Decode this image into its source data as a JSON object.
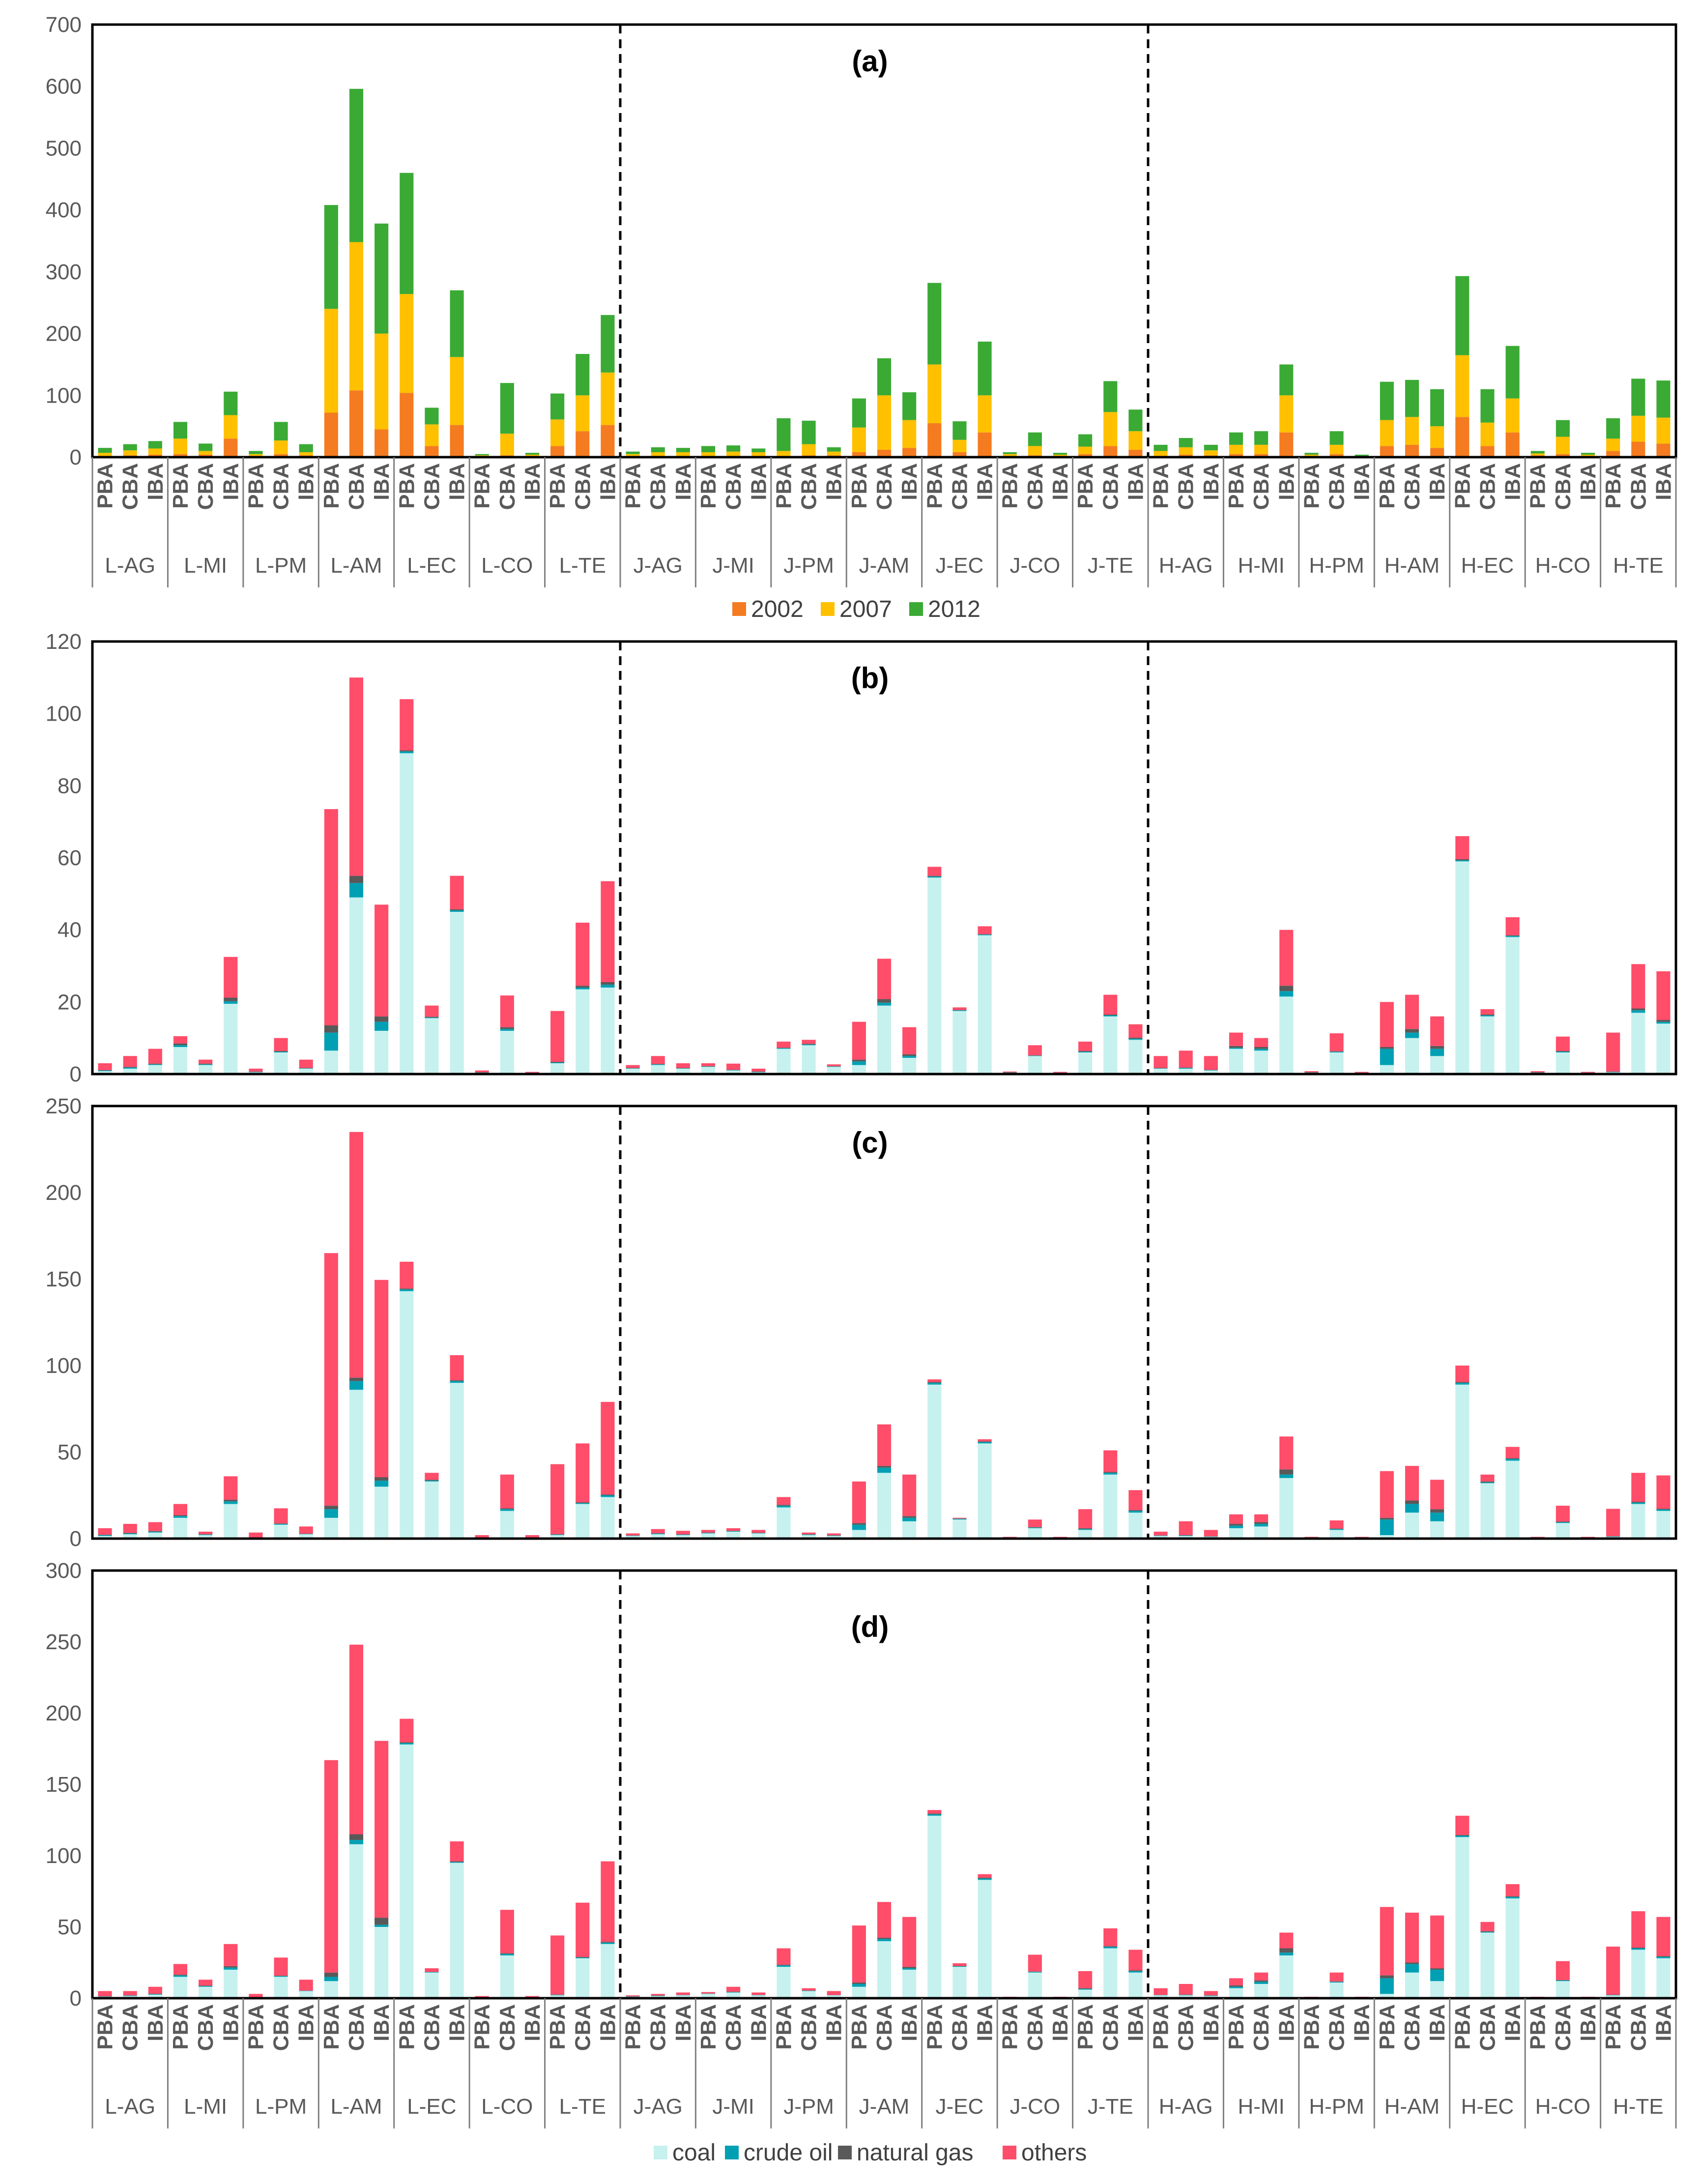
{
  "chart_data": [
    {
      "type": "bar",
      "stacked": true,
      "panel_label": "(a)",
      "ylim": [
        0,
        700
      ],
      "yticks": [
        "0",
        "100",
        "200",
        "300",
        "400",
        "500",
        "600",
        "700"
      ],
      "series": [
        {
          "name": "2002",
          "color": "#f47b20",
          "values": [
            2,
            3,
            4,
            5,
            4,
            30,
            2,
            5,
            3,
            72,
            108,
            45,
            104,
            18,
            52,
            2,
            3,
            2,
            18,
            42,
            52,
            1,
            2,
            2,
            2,
            2,
            2,
            2,
            3,
            3,
            8,
            12,
            15,
            55,
            8,
            40,
            2,
            3,
            2,
            5,
            18,
            12,
            2,
            4,
            3,
            5,
            5,
            40,
            2,
            5,
            1,
            18,
            20,
            15,
            65,
            18,
            40,
            3,
            5,
            2,
            10,
            25,
            22
          ]
        },
        {
          "name": "2007",
          "color": "#ffc000",
          "values": [
            5,
            8,
            10,
            25,
            6,
            38,
            3,
            22,
            5,
            168,
            240,
            155,
            160,
            35,
            110,
            1,
            35,
            2,
            43,
            58,
            85,
            4,
            6,
            6,
            6,
            7,
            6,
            8,
            18,
            6,
            40,
            88,
            45,
            95,
            20,
            60,
            3,
            15,
            2,
            12,
            55,
            30,
            8,
            12,
            8,
            15,
            15,
            60,
            2,
            15,
            1,
            42,
            45,
            35,
            100,
            38,
            55,
            3,
            28,
            2,
            20,
            42,
            42
          ]
        },
        {
          "name": "2012",
          "color": "#3aaa35",
          "values": [
            8,
            10,
            12,
            27,
            12,
            38,
            5,
            30,
            13,
            168,
            248,
            178,
            196,
            27,
            108,
            2,
            82,
            3,
            42,
            67,
            93,
            4,
            8,
            7,
            10,
            10,
            6,
            53,
            38,
            7,
            47,
            60,
            45,
            132,
            30,
            87,
            3,
            22,
            3,
            20,
            50,
            35,
            10,
            15,
            9,
            20,
            22,
            50,
            3,
            22,
            2,
            62,
            60,
            60,
            128,
            54,
            85,
            4,
            27,
            3,
            33,
            60,
            60
          ]
        }
      ]
    },
    {
      "type": "bar",
      "stacked": true,
      "panel_label": "(b)",
      "ylim": [
        0,
        120
      ],
      "yticks": [
        "0",
        "20",
        "40",
        "60",
        "80",
        "100",
        "120"
      ],
      "series": [
        {
          "name": "coal",
          "color": "#c6f1ef",
          "values": [
            0.8,
            1.5,
            2.5,
            7.5,
            2.5,
            19.5,
            0.5,
            6,
            1.5,
            6.5,
            49,
            12,
            89,
            15.5,
            45,
            0.3,
            12,
            0.2,
            3,
            23.5,
            24,
            1.5,
            2.5,
            1.5,
            2,
            1,
            0.5,
            7,
            8,
            2,
            2.5,
            19,
            4.5,
            54.5,
            17.5,
            38.5,
            0.3,
            5,
            0.2,
            6,
            16,
            9.5,
            1.5,
            1.5,
            1,
            7,
            6.5,
            21.5,
            0.3,
            6,
            0.2,
            2.5,
            10,
            5,
            59,
            16,
            38,
            0.3,
            6,
            0.2,
            0.5,
            17,
            14
          ]
        },
        {
          "name": "crude oil",
          "color": "#00a0b4",
          "values": [
            0.2,
            0.3,
            0.2,
            0.5,
            0.2,
            0.7,
            0.1,
            0.2,
            0.1,
            5,
            4,
            2.5,
            0.5,
            0.2,
            0.4,
            0.1,
            0.5,
            0.1,
            0.2,
            0.5,
            0.8,
            0.1,
            0.2,
            0.1,
            0.1,
            0.1,
            0.1,
            0.2,
            0.2,
            0.1,
            1,
            0.8,
            0.5,
            0.3,
            0.2,
            0.2,
            0.1,
            0.1,
            0.1,
            0.2,
            0.3,
            0.3,
            0.1,
            0.2,
            0.1,
            0.3,
            0.5,
            1.5,
            0.1,
            0.2,
            0.1,
            4.5,
            1.5,
            2,
            0.3,
            0.3,
            0.3,
            0.1,
            0.2,
            0.1,
            0.1,
            0.7,
            0.5
          ]
        },
        {
          "name": "natural gas",
          "color": "#595959",
          "values": [
            0.1,
            0.2,
            0.2,
            0.5,
            0.2,
            1,
            0.1,
            0.2,
            0.1,
            2,
            2,
            1.5,
            0.3,
            0.2,
            0.3,
            0.1,
            0.5,
            0.1,
            0.2,
            0.5,
            0.7,
            0.1,
            0.1,
            0.1,
            0.1,
            0.1,
            0.1,
            0.1,
            0.2,
            0.1,
            0.5,
            1,
            0.5,
            0.2,
            0.1,
            0.1,
            0.1,
            0.1,
            0.1,
            0.2,
            0.2,
            0.3,
            0.1,
            0.1,
            0.1,
            0.5,
            0.5,
            1.5,
            0.1,
            0.1,
            0.1,
            0.5,
            1,
            0.8,
            0.3,
            0.2,
            0.2,
            0.1,
            0.2,
            0.1,
            0.1,
            0.5,
            0.5
          ]
        },
        {
          "name": "others",
          "color": "#ff4d6a",
          "values": [
            1.9,
            3,
            4.1,
            2,
            1.1,
            11.3,
            0.8,
            3.6,
            2.3,
            60,
            55,
            31,
            14.2,
            3.1,
            9.3,
            0.5,
            8.8,
            0.2,
            14.1,
            17.5,
            28,
            0.8,
            2.2,
            1.3,
            0.8,
            1.7,
            0.8,
            1.7,
            1.1,
            0.5,
            10.5,
            11.2,
            7.5,
            2.5,
            0.7,
            2.2,
            0.2,
            2.8,
            0.2,
            2.6,
            5.5,
            3.7,
            3.3,
            4.7,
            3.8,
            3.7,
            2.5,
            15.5,
            0.3,
            5,
            0.2,
            12.5,
            9.5,
            8.2,
            6.4,
            1.5,
            5,
            0.3,
            4,
            0.2,
            10.8,
            12.3,
            13.5
          ]
        }
      ]
    },
    {
      "type": "bar",
      "stacked": true,
      "panel_label": "(c)",
      "ylim": [
        0,
        250
      ],
      "yticks": [
        "0",
        "50",
        "100",
        "150",
        "200",
        "250"
      ],
      "series": [
        {
          "name": "coal",
          "color": "#c6f1ef",
          "values": [
            1.5,
            2.5,
            3.5,
            12,
            2,
            20,
            0.5,
            8,
            2.5,
            12,
            86,
            30,
            143,
            33,
            90,
            0.5,
            16,
            0.4,
            2,
            20,
            24,
            1.5,
            2.5,
            2,
            3,
            4,
            3,
            18,
            2,
            1.5,
            5,
            38,
            10,
            89,
            11,
            55,
            0.4,
            6,
            0.4,
            5,
            37,
            15,
            1.5,
            1.5,
            1,
            6,
            7,
            35,
            0.4,
            5,
            0.4,
            2,
            15,
            10,
            89,
            32,
            45,
            0.4,
            9,
            0.4,
            1,
            20,
            16
          ]
        },
        {
          "name": "crude oil",
          "color": "#00a0b4",
          "values": [
            0.5,
            0.5,
            0.5,
            1,
            0.3,
            1.5,
            0.1,
            0.5,
            0.2,
            5,
            5,
            3.5,
            1,
            0.5,
            1,
            0.1,
            1,
            0.1,
            0.3,
            0.5,
            1,
            0.2,
            0.4,
            0.3,
            0.3,
            0.3,
            0.2,
            1,
            0.3,
            0.2,
            3,
            3,
            2,
            1,
            0.4,
            0.8,
            0.1,
            0.4,
            0.1,
            0.5,
            1,
            1,
            0.2,
            0.3,
            0.2,
            1.5,
            1.5,
            2,
            0.1,
            0.5,
            0.1,
            9,
            5,
            5,
            1,
            0.5,
            1,
            0.1,
            0.5,
            0.1,
            0.2,
            0.8,
            0.8
          ]
        },
        {
          "name": "natural gas",
          "color": "#595959",
          "values": [
            0.2,
            0.3,
            0.3,
            0.5,
            0.2,
            1,
            0.1,
            0.2,
            0.1,
            2,
            2,
            2,
            0.5,
            0.5,
            0.5,
            0.1,
            0.5,
            0.1,
            0.2,
            0.5,
            0.5,
            0.1,
            0.2,
            0.1,
            0.2,
            0.2,
            0.2,
            0.5,
            0.2,
            0.2,
            1,
            1,
            1,
            0.5,
            0.2,
            0.4,
            0.1,
            0.2,
            0.1,
            0.5,
            0.5,
            0.5,
            0.1,
            0.2,
            0.1,
            1,
            1,
            3,
            0.1,
            0.3,
            0.1,
            1,
            2,
            2,
            0.5,
            0.5,
            0.5,
            0.1,
            0.3,
            0.1,
            0.2,
            0.5,
            0.5
          ]
        },
        {
          "name": "others",
          "color": "#ff4d6a",
          "values": [
            3.8,
            5.2,
            5.2,
            6.5,
            1.5,
            13.5,
            2.8,
            8.8,
            4.2,
            146,
            142,
            114,
            15.5,
            4,
            14.5,
            1.3,
            19.5,
            1.4,
            40.5,
            34,
            53.5,
            1.2,
            2.4,
            2.1,
            1.5,
            1.5,
            1.6,
            4.5,
            1,
            1.1,
            24,
            24,
            24,
            1.5,
            0.4,
            1.2,
            0.4,
            4.4,
            0.4,
            11,
            12.5,
            11.5,
            2.2,
            8,
            3.7,
            5.5,
            4.5,
            19,
            0.4,
            4.7,
            0.4,
            27,
            20,
            17,
            9.5,
            4,
            6.5,
            0.4,
            9.2,
            0.4,
            15.8,
            16.7,
            19.2
          ]
        }
      ]
    },
    {
      "type": "bar",
      "stacked": true,
      "panel_label": "(d)",
      "ylim": [
        0,
        300
      ],
      "yticks": [
        "0",
        "50",
        "100",
        "150",
        "200",
        "250",
        "300"
      ],
      "series": [
        {
          "name": "coal",
          "color": "#c6f1ef",
          "values": [
            1,
            1.5,
            2.5,
            15,
            8,
            20,
            0.5,
            15,
            5,
            12,
            108,
            50,
            178,
            18,
            95,
            0.5,
            30,
            0.5,
            2,
            28,
            38,
            1,
            1.5,
            2,
            3,
            4,
            2,
            22,
            5,
            2,
            8,
            40,
            20,
            128,
            22,
            83,
            0.5,
            18,
            0.5,
            6,
            35,
            18,
            2,
            2,
            1.5,
            7,
            10,
            30,
            0.4,
            11,
            0.4,
            3,
            18,
            12,
            113,
            46,
            70,
            0.4,
            12,
            0.4,
            2,
            34,
            28
          ]
        },
        {
          "name": "crude oil",
          "color": "#00a0b4",
          "values": [
            0.2,
            0.3,
            0.4,
            1,
            0.5,
            1.5,
            0.1,
            0.5,
            0.2,
            3,
            3,
            1.5,
            1,
            0.3,
            0.5,
            0.1,
            1,
            0.1,
            0.3,
            0.5,
            1,
            0.2,
            0.2,
            0.2,
            0.2,
            0.3,
            0.2,
            1,
            0.2,
            0.1,
            2,
            1.5,
            1,
            1,
            0.4,
            1,
            0.1,
            0.5,
            0.1,
            0.5,
            1,
            1,
            0.2,
            0.3,
            0.3,
            1,
            1.5,
            2,
            0.1,
            0.5,
            0.1,
            11,
            6,
            8,
            1,
            0.5,
            1,
            0.1,
            0.5,
            0.1,
            0.2,
            1,
            1
          ]
        },
        {
          "name": "natural gas",
          "color": "#595959",
          "values": [
            0.1,
            0.2,
            0.2,
            0.5,
            0.3,
            1,
            0.1,
            0.3,
            0.1,
            3,
            4,
            5,
            0.5,
            0.2,
            0.5,
            0.1,
            0.5,
            0.1,
            0.2,
            0.5,
            0.5,
            0.1,
            0.2,
            0.1,
            0.1,
            0.2,
            0.1,
            0.5,
            0.2,
            0.1,
            1,
            1,
            1,
            0.5,
            0.2,
            0.5,
            0.1,
            0.2,
            0.1,
            0.5,
            0.5,
            0.5,
            0.1,
            0.2,
            0.2,
            1,
            1,
            3,
            0.1,
            0.3,
            0.1,
            2,
            1,
            1,
            0.5,
            0.5,
            0.5,
            0.1,
            0.3,
            0.1,
            0.2,
            0.5,
            0.5
          ]
        },
        {
          "name": "others",
          "color": "#ff4d6a",
          "values": [
            3.7,
            3,
            4.9,
            7.5,
            4.2,
            15.5,
            2.3,
            12.7,
            7.7,
            149,
            133,
            124,
            16.5,
            2.5,
            14,
            0.8,
            30.5,
            0.8,
            41.5,
            38,
            56.5,
            0.7,
            1.1,
            1.7,
            1,
            3.5,
            1.7,
            11.5,
            1.6,
            2.8,
            40,
            25,
            35,
            2.5,
            1.9,
            2.5,
            0.3,
            11.8,
            0.3,
            12,
            12.5,
            14.5,
            4.7,
            7.5,
            3,
            5,
            5.5,
            11,
            0.4,
            6.2,
            0.4,
            48,
            35,
            37,
            13.5,
            6.5,
            8.5,
            0.4,
            13.2,
            0.4,
            33.8,
            25.5,
            27.5
          ]
        }
      ]
    }
  ],
  "x_axis": {
    "bar_labels": [
      "PBA",
      "CBA",
      "IBA"
    ],
    "groups": [
      "L-AG",
      "L-MI",
      "L-PM",
      "L-AM",
      "L-EC",
      "L-CO",
      "L-TE",
      "J-AG",
      "J-MI",
      "J-PM",
      "J-AM",
      "J-EC",
      "J-CO",
      "J-TE",
      "H-AG",
      "H-MI",
      "H-PM",
      "H-AM",
      "H-EC",
      "H-CO",
      "H-TE"
    ]
  },
  "legend_years": [
    {
      "label": "2002",
      "color": "#f47b20"
    },
    {
      "label": "2007",
      "color": "#ffc000"
    },
    {
      "label": "2012",
      "color": "#3aaa35"
    }
  ],
  "legend_fuels": [
    {
      "label": "coal",
      "color": "#c6f1ef"
    },
    {
      "label": "crude oil",
      "color": "#00a0b4"
    },
    {
      "label": "natural gas",
      "color": "#595959"
    },
    {
      "label": "others",
      "color": "#ff4d6a"
    }
  ]
}
